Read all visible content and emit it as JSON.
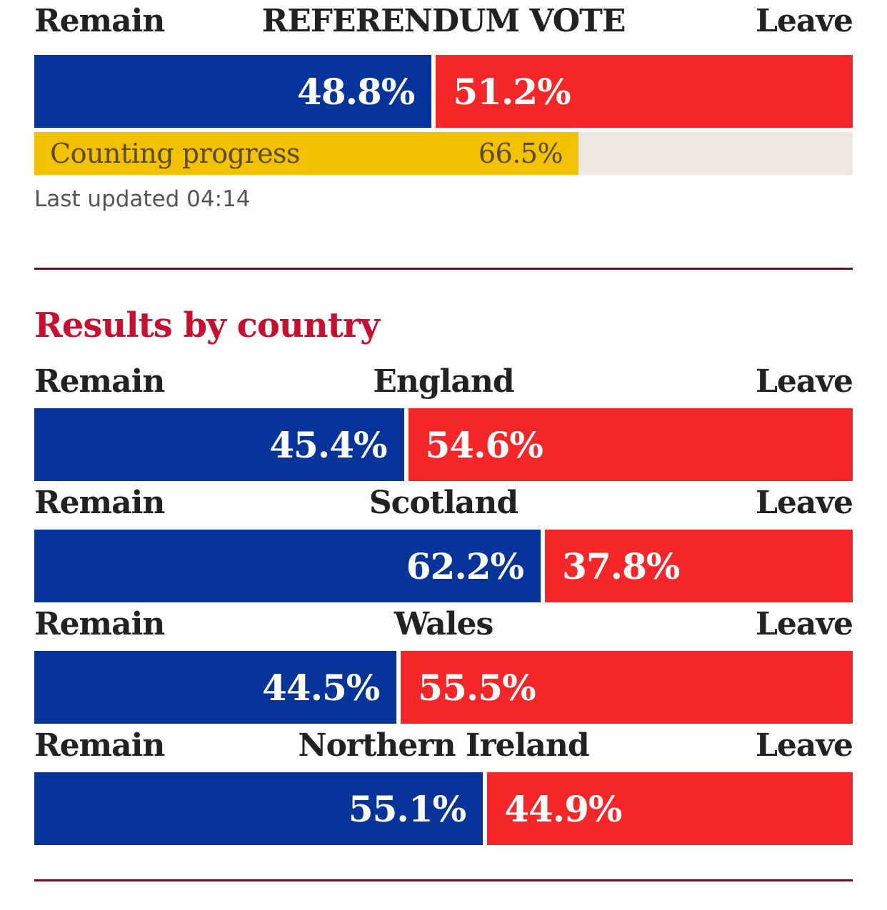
{
  "colors": {
    "remain": "#06349a",
    "leave": "#f42628",
    "progress": "#f2c100",
    "progress_track": "#efe8df",
    "rule": "#6b0f19",
    "section_title": "#c8102e"
  },
  "overall": {
    "title": "REFERENDUM VOTE",
    "remain_label": "Remain",
    "leave_label": "Leave",
    "remain_text": "48.8%",
    "leave_text": "51.2%"
  },
  "progress": {
    "label": "Counting progress",
    "value_text": "66.5%"
  },
  "updated": {
    "text": "Last updated 04:14"
  },
  "section": {
    "title": "Results by country"
  },
  "countries": [
    {
      "name": "England",
      "remain_label": "Remain",
      "leave_label": "Leave",
      "remain_text": "45.4%",
      "leave_text": "54.6%"
    },
    {
      "name": "Scotland",
      "remain_label": "Remain",
      "leave_label": "Leave",
      "remain_text": "62.2%",
      "leave_text": "37.8%"
    },
    {
      "name": "Wales",
      "remain_label": "Remain",
      "leave_label": "Leave",
      "remain_text": "44.5%",
      "leave_text": "55.5%"
    },
    {
      "name": "Northern Ireland",
      "remain_label": "Remain",
      "leave_label": "Leave",
      "remain_text": "55.1%",
      "leave_text": "44.9%"
    }
  ],
  "chart_data": [
    {
      "type": "bar",
      "title": "REFERENDUM VOTE",
      "categories": [
        "Remain",
        "Leave"
      ],
      "values": [
        48.8,
        51.2
      ],
      "progress": {
        "label": "Counting progress",
        "value": 66.5
      }
    },
    {
      "type": "bar",
      "title": "Results by country",
      "categories": [
        "England",
        "Scotland",
        "Wales",
        "Northern Ireland"
      ],
      "series": [
        {
          "name": "Remain",
          "values": [
            45.4,
            62.2,
            44.5,
            55.1
          ]
        },
        {
          "name": "Leave",
          "values": [
            54.6,
            37.8,
            55.5,
            44.9
          ]
        }
      ]
    }
  ]
}
